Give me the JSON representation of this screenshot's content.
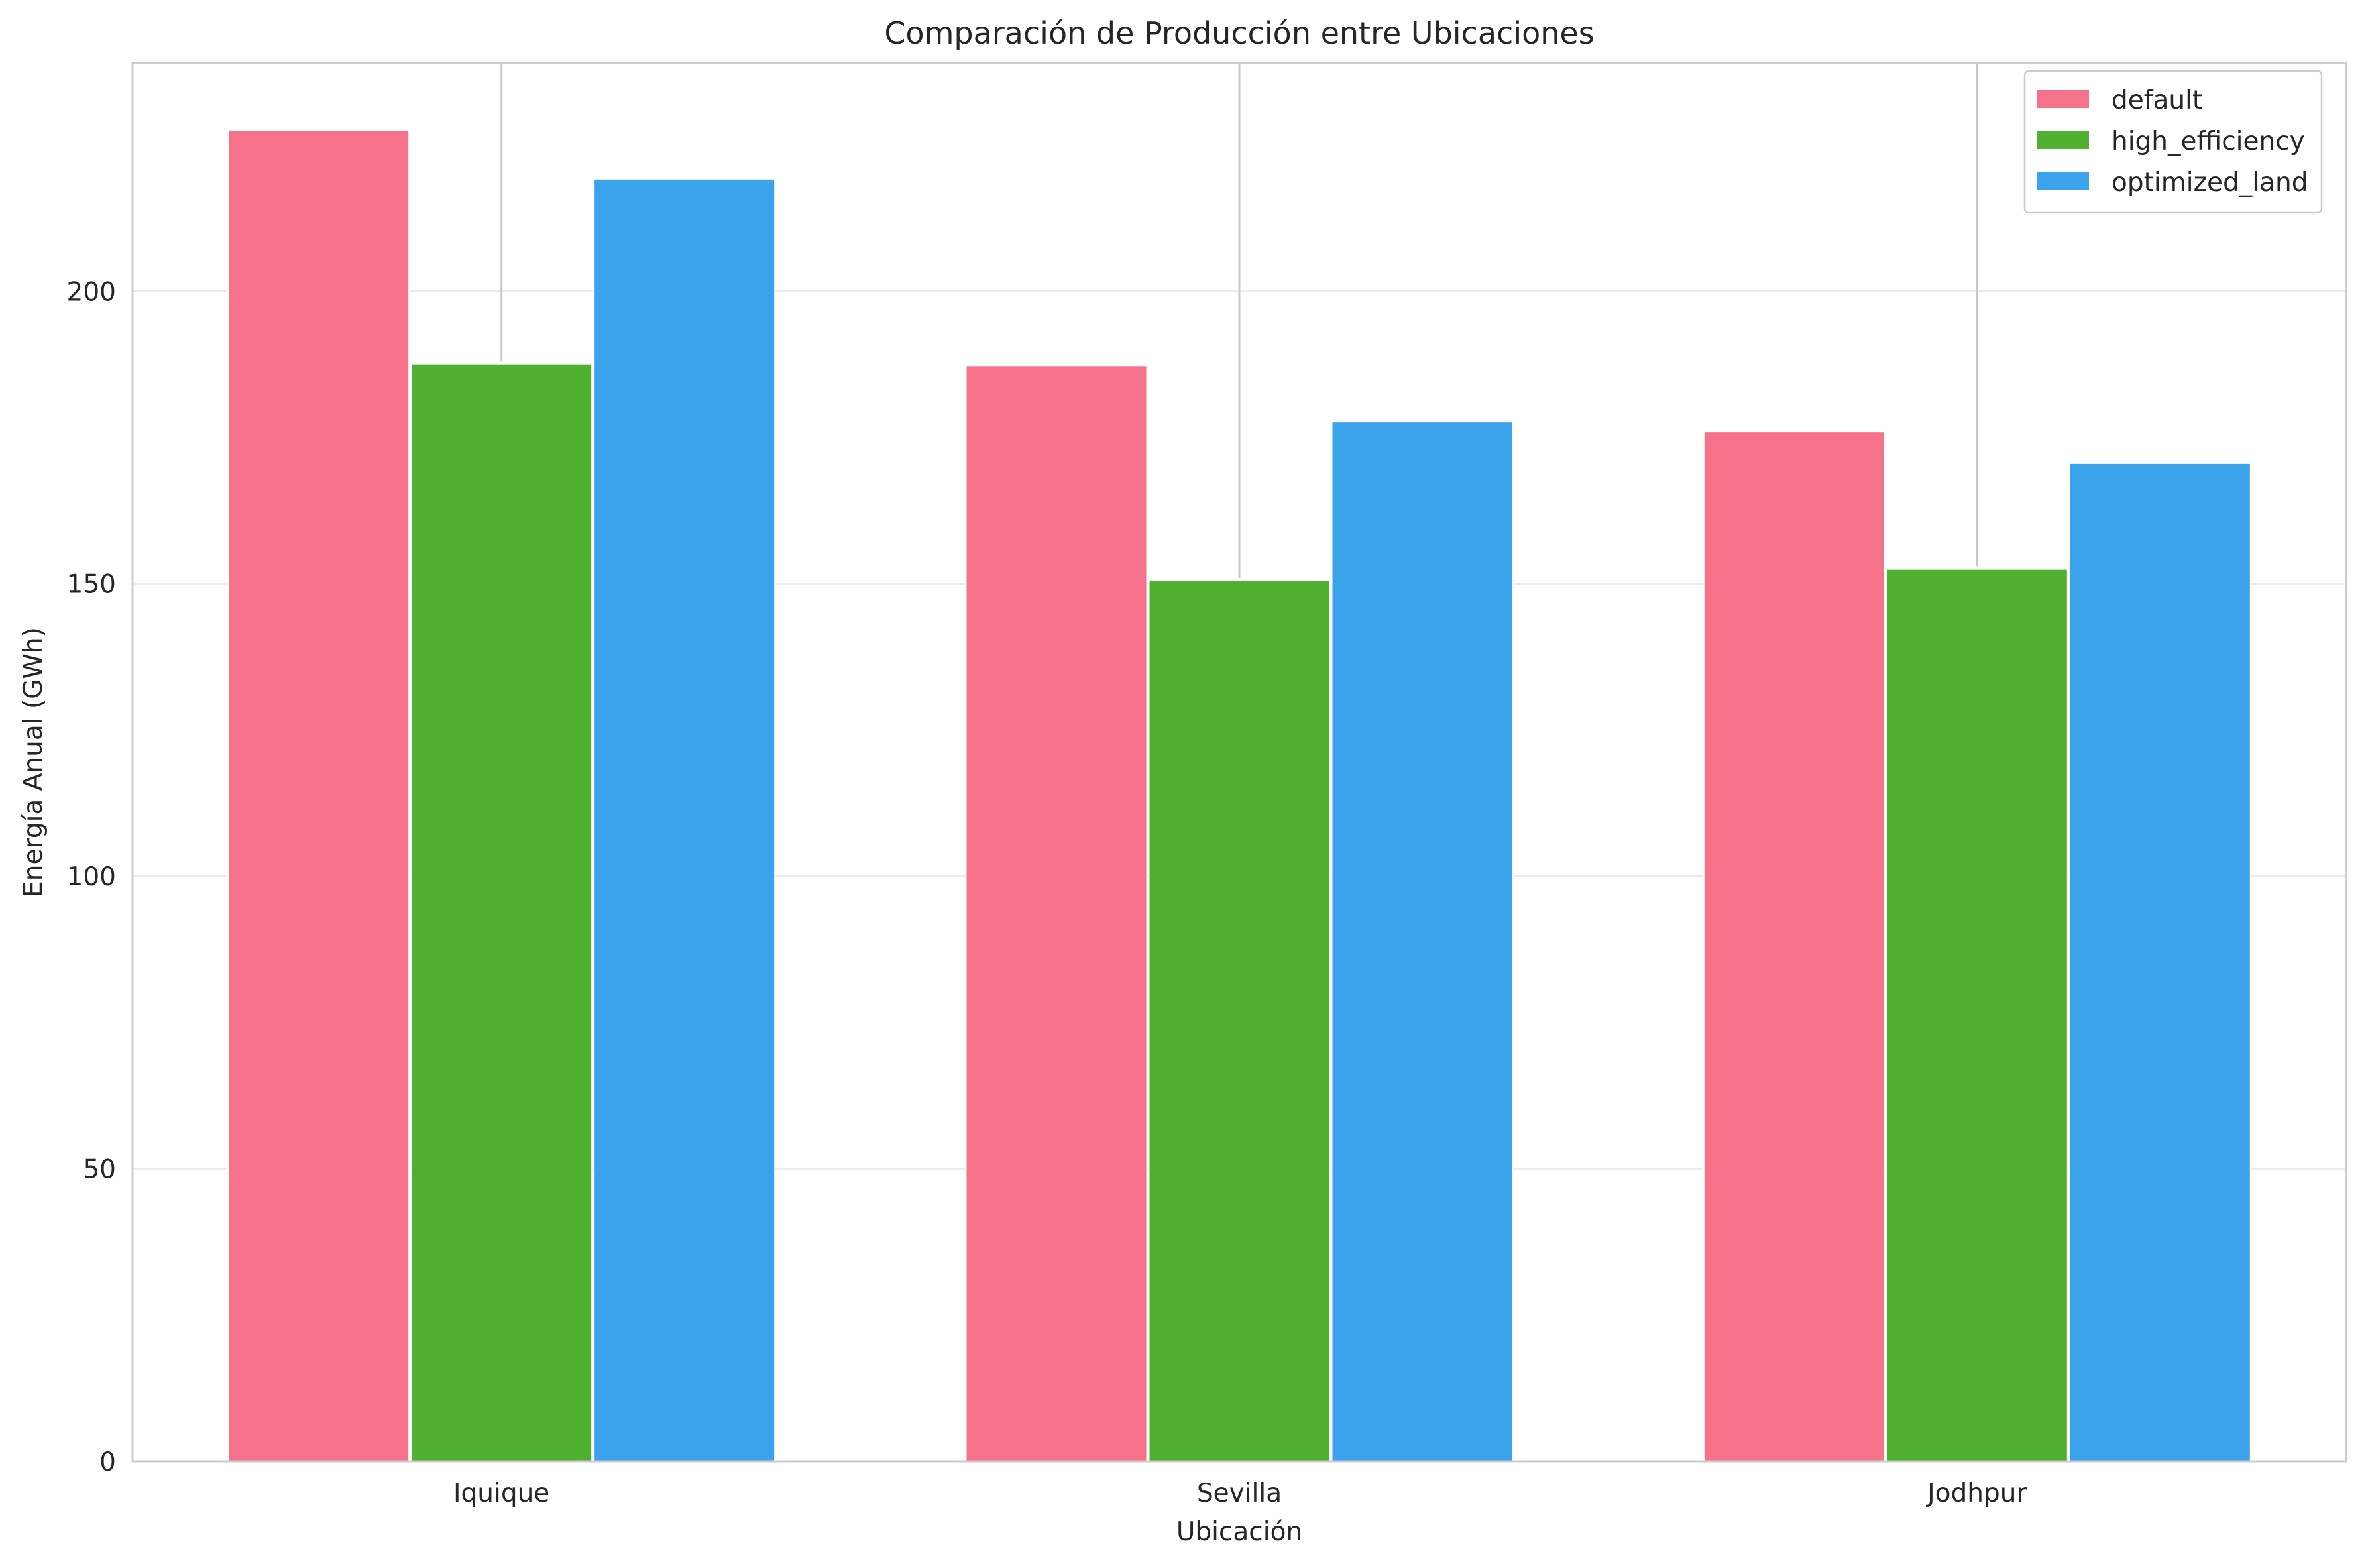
{
  "chart_data": {
    "type": "bar",
    "title": "Comparación de Producción entre Ubicaciones",
    "xlabel": "Ubicación",
    "ylabel": "Energía Anual (GWh)",
    "categories": [
      "Iquique",
      "Sevilla",
      "Jodhpur"
    ],
    "series": [
      {
        "name": "default",
        "color": "#f6728a",
        "values": [
          227.5,
          187.2,
          176.0
        ]
      },
      {
        "name": "high_efficiency",
        "color": "#50b131",
        "values": [
          187.5,
          150.6,
          152.5
        ]
      },
      {
        "name": "optimized_land",
        "color": "#3ba3ec",
        "values": [
          219.2,
          177.7,
          170.6
        ]
      }
    ],
    "error_tops": [
      188,
      151,
      153
    ],
    "ylim": [
      0,
      239
    ],
    "yticks": [
      0,
      50,
      100,
      150,
      200
    ],
    "grid": true,
    "legend_position": "top-right"
  }
}
